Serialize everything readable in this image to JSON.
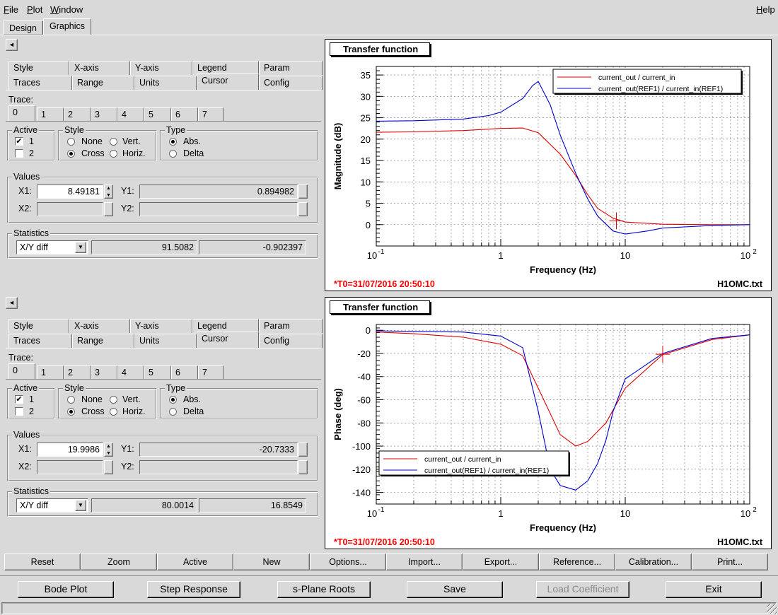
{
  "menu": {
    "file": "File",
    "plot": "Plot",
    "window": "Window",
    "help": "Help"
  },
  "top_tabs": [
    "Design",
    "Graphics"
  ],
  "panel_tabs_row1": [
    "Style",
    "X-axis",
    "Y-axis",
    "Legend",
    "Param"
  ],
  "panel_tabs_row2": [
    "Traces",
    "Range",
    "Units",
    "Cursor",
    "Config"
  ],
  "trace_label": "Trace:",
  "trace_tabs": [
    "0",
    "1",
    "2",
    "3",
    "4",
    "5",
    "6",
    "7"
  ],
  "groups": {
    "active": "Active",
    "style": "Style",
    "type": "Type",
    "values": "Values",
    "statistics": "Statistics"
  },
  "options": {
    "one": "1",
    "two": "2",
    "none": "None",
    "vert": "Vert.",
    "cross": "Cross",
    "horiz": "Horiz.",
    "abs": "Abs.",
    "delta": "Delta"
  },
  "field_labels": {
    "x1": "X1:",
    "x2": "X2:",
    "y1": "Y1:",
    "y2": "Y2:"
  },
  "panels": [
    {
      "x1": "8.49181",
      "y1": "0.894982",
      "stat_mode": "X/Y diff",
      "stat_a": "91.5082",
      "stat_b": "-0.902397"
    },
    {
      "x1": "19.9986",
      "y1": "-20.7333",
      "stat_mode": "X/Y diff",
      "stat_a": "80.0014",
      "stat_b": "16.8549"
    }
  ],
  "plots": [
    {
      "title": "Transfer function",
      "ylabel": "Magnitude (dB)",
      "xlabel": "Frequency (Hz)",
      "timestamp": "*T0=31/07/2016 20:50:10",
      "file": "H1OMC.txt"
    },
    {
      "title": "Transfer function",
      "ylabel": "Phase (deg)",
      "xlabel": "Frequency (Hz)",
      "timestamp": "*T0=31/07/2016 20:50:10",
      "file": "H1OMC.txt"
    }
  ],
  "legend": [
    "current_out / current_in",
    "current_out(REF1) / current_in(REF1)"
  ],
  "colors": {
    "red_trace": "#e00000",
    "blue_trace": "#0000cc",
    "timestamp": "#ff0000"
  },
  "chart_data": [
    {
      "type": "line",
      "title": "Transfer function",
      "xlabel": "Frequency (Hz)",
      "ylabel": "Magnitude (dB)",
      "xscale": "log",
      "xlim": [
        0.1,
        100
      ],
      "ylim": [
        -5,
        37
      ],
      "x_ticks": [
        "10^-1",
        "1",
        "10",
        "10^2"
      ],
      "y_ticks": [
        0,
        5,
        10,
        15,
        20,
        25,
        30,
        35
      ],
      "legend_position": "top-right",
      "series": [
        {
          "name": "current_out / current_in",
          "x": [
            0.1,
            0.2,
            0.5,
            1,
            1.5,
            2,
            3,
            4,
            5,
            6,
            8,
            10,
            20,
            50,
            100
          ],
          "values": [
            21.6,
            21.7,
            22.0,
            22.5,
            22.6,
            21.5,
            16.5,
            11.5,
            7.0,
            3.8,
            1.5,
            0.6,
            0.1,
            0,
            0
          ]
        },
        {
          "name": "current_out(REF1) / current_in(REF1)",
          "x": [
            0.1,
            0.2,
            0.5,
            0.8,
            1,
            1.5,
            1.8,
            2,
            2.5,
            3,
            4,
            5,
            6,
            8,
            10,
            15,
            20,
            50,
            100
          ],
          "values": [
            24.2,
            24.3,
            24.7,
            25.5,
            26.3,
            29.5,
            32.5,
            33.5,
            28.0,
            21.0,
            12.0,
            6.0,
            2.0,
            -1.5,
            -2.2,
            -1.5,
            -0.8,
            -0.2,
            0
          ]
        }
      ],
      "cursor": {
        "x": 8.49181,
        "y": 0.894982
      }
    },
    {
      "type": "line",
      "title": "Transfer function",
      "xlabel": "Frequency (Hz)",
      "ylabel": "Phase (deg)",
      "xscale": "log",
      "xlim": [
        0.1,
        100
      ],
      "ylim": [
        -150,
        5
      ],
      "x_ticks": [
        "10^-1",
        "1",
        "10",
        "10^2"
      ],
      "y_ticks": [
        0,
        -20,
        -40,
        -60,
        -80,
        -100,
        -120,
        -140
      ],
      "legend_position": "bottom-left",
      "series": [
        {
          "name": "current_out / current_in",
          "x": [
            0.1,
            0.2,
            0.5,
            1,
            1.5,
            2,
            3,
            4,
            5,
            7,
            10,
            20,
            50,
            100
          ],
          "values": [
            -1.5,
            -3,
            -6,
            -12,
            -22,
            -50,
            -90,
            -100,
            -96,
            -80,
            -50,
            -21,
            -8,
            -4
          ]
        },
        {
          "name": "current_out(REF1) / current_in(REF1)",
          "x": [
            0.1,
            0.5,
            1,
            1.5,
            2,
            2.5,
            3,
            4,
            5,
            6,
            7,
            8,
            10,
            20,
            50,
            100
          ],
          "values": [
            -0.5,
            -1.5,
            -5,
            -15,
            -70,
            -120,
            -134,
            -138,
            -130,
            -115,
            -95,
            -70,
            -42,
            -20,
            -7,
            -4
          ]
        }
      ],
      "cursor": {
        "x": 19.9986,
        "y": -20.7333
      }
    }
  ],
  "bottom_buttons": [
    "Reset",
    "Zoom",
    "Active",
    "New",
    "Options...",
    "Import...",
    "Export...",
    "Reference...",
    "Calibration...",
    "Print..."
  ],
  "main_buttons": [
    "Bode Plot",
    "Step Response",
    "s-Plane Roots",
    "Save",
    "Load Coefficient",
    "Exit"
  ]
}
